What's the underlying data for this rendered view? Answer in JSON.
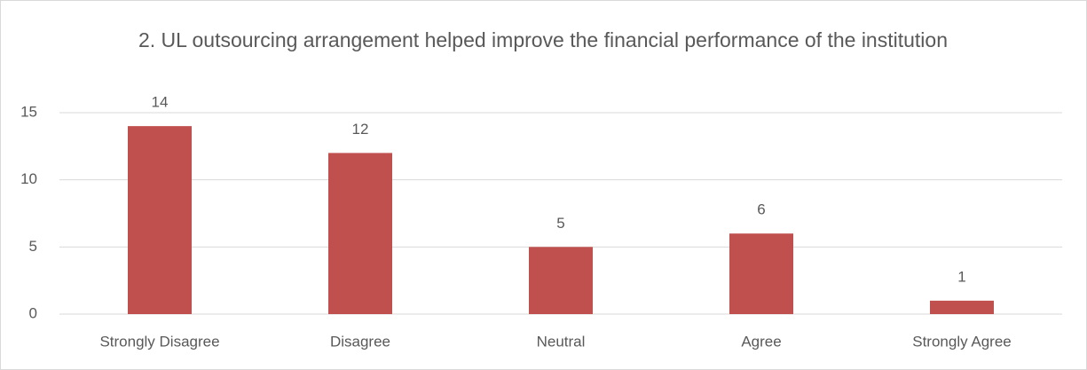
{
  "chart_data": {
    "type": "bar",
    "title": "2. UL outsourcing arrangement helped improve the financial performance of the institution",
    "categories": [
      "Strongly Disagree",
      "Disagree",
      "Neutral",
      "Agree",
      "Strongly Agree"
    ],
    "values": [
      14,
      12,
      5,
      6,
      1
    ],
    "color": "#c0504d",
    "ylim": [
      0,
      15
    ],
    "yticks": [
      0,
      5,
      10,
      15
    ],
    "grid": true,
    "data_labels": true
  }
}
